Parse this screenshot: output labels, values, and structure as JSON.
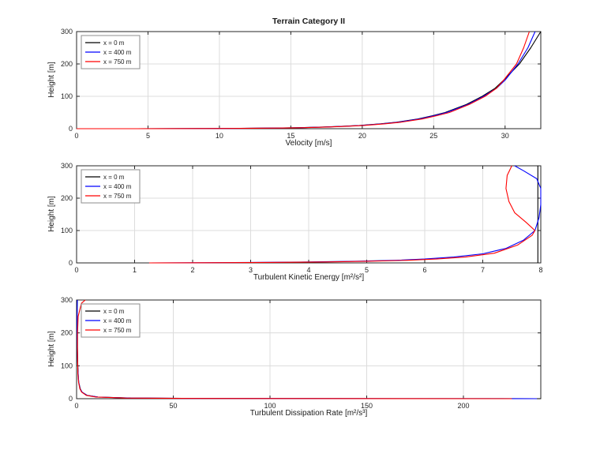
{
  "figure": {
    "title": "Terrain Category II",
    "background": "#ffffff",
    "axis_color": "#262626",
    "grid_color": "#dcdcdc",
    "legend_border_color": "#8c8c8c",
    "series_colors": {
      "s1": "#000000",
      "s2": "#0000ff",
      "s3": "#ff0000"
    }
  },
  "chart_data": [
    {
      "type": "line",
      "title": "Terrain Category II",
      "xlabel": "Velocity [m/s]",
      "ylabel": "Height [m]",
      "xlim": [
        0,
        32.5
      ],
      "ylim": [
        0,
        300
      ],
      "xticks": [
        0,
        5,
        10,
        15,
        20,
        25,
        30
      ],
      "yticks": [
        0,
        100,
        200,
        300
      ],
      "grid": true,
      "legend_position": "top-left",
      "legend": [
        "x = 0 m",
        "x = 400 m",
        "x = 750 m"
      ],
      "series": [
        {
          "name": "x = 0 m",
          "color": "#000000",
          "points": [
            [
              0,
              0
            ],
            [
              4.1,
              0.1
            ],
            [
              9.0,
              0.5
            ],
            [
              11.4,
              1
            ],
            [
              13.9,
              2
            ],
            [
              15.4,
              3
            ],
            [
              17.2,
              5
            ],
            [
              18.5,
              7
            ],
            [
              19.8,
              10
            ],
            [
              21.3,
              15
            ],
            [
              22.4,
              20
            ],
            [
              23.9,
              30
            ],
            [
              24.9,
              40
            ],
            [
              25.8,
              50
            ],
            [
              27.3,
              75
            ],
            [
              28.4,
              100
            ],
            [
              29.3,
              125
            ],
            [
              29.9,
              150
            ],
            [
              31.0,
              200
            ],
            [
              31.8,
              250
            ],
            [
              32.5,
              300
            ]
          ]
        },
        {
          "name": "x = 400 m",
          "color": "#0000ff",
          "points": [
            [
              0,
              0
            ],
            [
              4.2,
              0.1
            ],
            [
              9.1,
              0.5
            ],
            [
              11.5,
              1
            ],
            [
              14.0,
              2
            ],
            [
              15.5,
              3
            ],
            [
              17.3,
              5
            ],
            [
              18.6,
              7
            ],
            [
              19.9,
              10
            ],
            [
              21.4,
              15
            ],
            [
              22.5,
              20
            ],
            [
              24.0,
              30
            ],
            [
              25.0,
              40
            ],
            [
              25.9,
              50
            ],
            [
              27.4,
              75
            ],
            [
              28.5,
              100
            ],
            [
              29.4,
              125
            ],
            [
              30.0,
              150
            ],
            [
              30.9,
              200
            ],
            [
              31.6,
              250
            ],
            [
              32.1,
              300
            ]
          ]
        },
        {
          "name": "x = 750 m",
          "color": "#ff0000",
          "points": [
            [
              0,
              0
            ],
            [
              4.3,
              0.1
            ],
            [
              9.3,
              0.5
            ],
            [
              11.7,
              1
            ],
            [
              14.2,
              2
            ],
            [
              15.7,
              3
            ],
            [
              17.5,
              5
            ],
            [
              18.8,
              7
            ],
            [
              20.1,
              10
            ],
            [
              21.6,
              15
            ],
            [
              22.7,
              20
            ],
            [
              24.2,
              30
            ],
            [
              25.2,
              40
            ],
            [
              26.1,
              50
            ],
            [
              27.5,
              75
            ],
            [
              28.6,
              100
            ],
            [
              29.4,
              125
            ],
            [
              29.9,
              150
            ],
            [
              30.8,
              200
            ],
            [
              31.3,
              250
            ],
            [
              31.7,
              300
            ]
          ]
        }
      ]
    },
    {
      "type": "line",
      "title": "",
      "xlabel": "Turbulent Kinetic Energy [m²/s²]",
      "ylabel": "Height [m]",
      "xlim": [
        0,
        8
      ],
      "ylim": [
        0,
        300
      ],
      "xticks": [
        0,
        1,
        2,
        3,
        4,
        5,
        6,
        7,
        8
      ],
      "yticks": [
        0,
        100,
        200,
        300
      ],
      "grid": true,
      "legend_position": "top-left",
      "legend": [
        "x = 0 m",
        "x = 400 m",
        "x = 750 m"
      ],
      "series": [
        {
          "name": "x = 0 m",
          "color": "#000000",
          "points": [
            [
              7.95,
              0
            ],
            [
              7.95,
              300
            ]
          ]
        },
        {
          "name": "x = 400 m",
          "color": "#0000ff",
          "points": [
            [
              1.25,
              0
            ],
            [
              2.0,
              0.5
            ],
            [
              3.0,
              1.5
            ],
            [
              4.0,
              3
            ],
            [
              4.8,
              5
            ],
            [
              5.5,
              8
            ],
            [
              6.0,
              12
            ],
            [
              6.5,
              18
            ],
            [
              7.0,
              28
            ],
            [
              7.4,
              45
            ],
            [
              7.7,
              70
            ],
            [
              7.9,
              100
            ],
            [
              7.97,
              140
            ],
            [
              8.0,
              180
            ],
            [
              8.0,
              230
            ],
            [
              7.93,
              260
            ],
            [
              7.7,
              285
            ],
            [
              7.55,
              300
            ]
          ]
        },
        {
          "name": "x = 750 m",
          "color": "#ff0000",
          "points": [
            [
              1.25,
              0
            ],
            [
              2.2,
              0.5
            ],
            [
              3.3,
              1.5
            ],
            [
              4.3,
              3
            ],
            [
              5.0,
              5
            ],
            [
              5.7,
              8
            ],
            [
              6.2,
              12
            ],
            [
              6.7,
              18
            ],
            [
              7.2,
              30
            ],
            [
              7.6,
              55
            ],
            [
              7.85,
              85
            ],
            [
              7.9,
              100
            ],
            [
              7.75,
              125
            ],
            [
              7.55,
              155
            ],
            [
              7.45,
              190
            ],
            [
              7.4,
              230
            ],
            [
              7.42,
              270
            ],
            [
              7.5,
              300
            ]
          ]
        }
      ]
    },
    {
      "type": "line",
      "title": "",
      "xlabel": "Turbulent Dissipation Rate [m²/s³]",
      "ylabel": "Height [m]",
      "xlim": [
        0,
        240
      ],
      "ylim": [
        0,
        300
      ],
      "xticks": [
        0,
        50,
        100,
        150,
        200
      ],
      "yticks": [
        0,
        100,
        200,
        300
      ],
      "grid": true,
      "legend_position": "top-left",
      "legend": [
        "x = 0 m",
        "x = 400 m",
        "x = 750 m"
      ],
      "series": [
        {
          "name": "x = 0 m",
          "color": "#000000",
          "points": [
            [
              240,
              0
            ],
            [
              110,
              0.5
            ],
            [
              55,
              1
            ],
            [
              28,
              2
            ],
            [
              11,
              5
            ],
            [
              5.5,
              10
            ],
            [
              2.8,
              20
            ],
            [
              1.9,
              30
            ],
            [
              1.1,
              50
            ],
            [
              0.8,
              75
            ],
            [
              0.6,
              100
            ],
            [
              0.4,
              150
            ],
            [
              0.3,
              200
            ],
            [
              0.25,
              250
            ],
            [
              0.2,
              300
            ]
          ]
        },
        {
          "name": "x = 400 m",
          "color": "#0000ff",
          "points": [
            [
              238,
              0
            ],
            [
              108,
              0.5
            ],
            [
              54,
              1
            ],
            [
              27,
              2
            ],
            [
              11,
              5
            ],
            [
              5.4,
              10
            ],
            [
              2.8,
              20
            ],
            [
              1.8,
              30
            ],
            [
              1.1,
              50
            ],
            [
              0.8,
              75
            ],
            [
              0.6,
              100
            ],
            [
              0.4,
              150
            ],
            [
              0.3,
              200
            ],
            [
              0.3,
              250
            ],
            [
              0.4,
              300
            ]
          ]
        },
        {
          "name": "x = 750 m",
          "color": "#ff0000",
          "points": [
            [
              225,
              0
            ],
            [
              100,
              0.5
            ],
            [
              50,
              1
            ],
            [
              25,
              2
            ],
            [
              10,
              5
            ],
            [
              5.0,
              10
            ],
            [
              2.6,
              20
            ],
            [
              1.7,
              30
            ],
            [
              1.0,
              50
            ],
            [
              0.7,
              75
            ],
            [
              0.6,
              100
            ],
            [
              0.5,
              150
            ],
            [
              0.5,
              200
            ],
            [
              0.8,
              250
            ],
            [
              2.5,
              290
            ],
            [
              4.5,
              300
            ]
          ]
        }
      ]
    }
  ]
}
